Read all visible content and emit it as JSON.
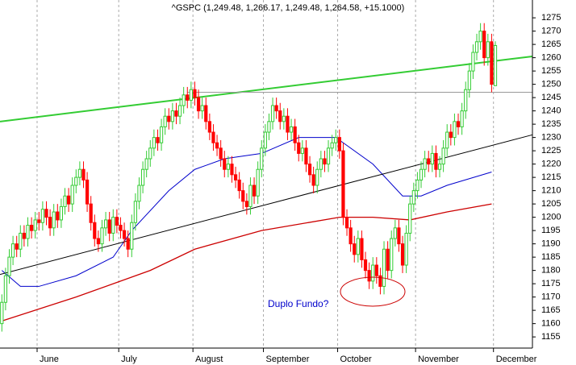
{
  "chart_data": {
    "type": "candlestick",
    "title": "^GSPC (1,249.48, 1,266.17, 1,249.48, 1,264.58, +15.1000)",
    "annotation": "Duplo Fundo?",
    "categories": [
      null,
      null,
      null,
      null,
      null,
      null,
      null,
      null,
      null,
      null,
      "June",
      null,
      null,
      null,
      null,
      null,
      null,
      null,
      null,
      null,
      null,
      null,
      null,
      null,
      null,
      null,
      null,
      null,
      null,
      null,
      null,
      null,
      "July",
      null,
      null,
      null,
      null,
      null,
      null,
      null,
      null,
      null,
      null,
      null,
      null,
      null,
      null,
      null,
      null,
      null,
      null,
      null,
      "August",
      null,
      null,
      null,
      null,
      null,
      null,
      null,
      null,
      null,
      null,
      null,
      null,
      null,
      null,
      null,
      null,
      null,
      null,
      "September",
      null,
      null,
      null,
      null,
      null,
      null,
      null,
      null,
      null,
      null,
      null,
      null,
      null,
      null,
      null,
      null,
      null,
      null,
      null,
      "October",
      null,
      null,
      null,
      null,
      null,
      null,
      null,
      null,
      null,
      null,
      null,
      null,
      null,
      null,
      null,
      null,
      null,
      null,
      null,
      null,
      "November",
      null,
      null,
      null,
      null,
      null,
      null,
      null,
      null,
      null,
      null,
      null,
      null,
      null,
      null,
      null,
      null,
      null,
      null,
      null,
      null,
      "December"
    ],
    "series": [
      {
        "up_color": "#33cc33",
        "down_color": "#ff0000",
        "open": [
          1160,
          1168,
          1178,
          1185,
          1190,
          1188,
          1194,
          1192,
          1197,
          1195,
          1199,
          1198,
          1203,
          1200,
          1196,
          1202,
          1199,
          1204,
          1208,
          1205,
          1212,
          1215,
          1218,
          1214,
          1205,
          1198,
          1192,
          1190,
          1196,
          1199,
          1194,
          1200,
          1197,
          1195,
          1192,
          1188,
          1198,
          1206,
          1212,
          1218,
          1222,
          1226,
          1230,
          1228,
          1234,
          1238,
          1236,
          1240,
          1238,
          1242,
          1246,
          1244,
          1248,
          1245,
          1240,
          1242,
          1236,
          1232,
          1228,
          1226,
          1222,
          1218,
          1220,
          1216,
          1214,
          1210,
          1206,
          1204,
          1212,
          1208,
          1218,
          1226,
          1232,
          1236,
          1242,
          1240,
          1236,
          1238,
          1232,
          1234,
          1228,
          1224,
          1226,
          1220,
          1216,
          1212,
          1218,
          1222,
          1220,
          1226,
          1228,
          1230,
          1225,
          1200,
          1196,
          1190,
          1186,
          1192,
          1184,
          1180,
          1176,
          1182,
          1178,
          1174,
          1188,
          1180,
          1192,
          1196,
          1190,
          1182,
          1194,
          1205,
          1210,
          1214,
          1218,
          1222,
          1220,
          1224,
          1218,
          1220,
          1226,
          1232,
          1230,
          1236,
          1234,
          1240,
          1248,
          1255,
          1262,
          1266,
          1270,
          1260,
          1266,
          1249.48
        ],
        "high": [
          1171,
          1181,
          1188,
          1193,
          1193,
          1197,
          1197,
          1200,
          1200,
          1202,
          1202,
          1206,
          1206,
          1203,
          1205,
          1205,
          1207,
          1211,
          1211,
          1215,
          1218,
          1221,
          1221,
          1217,
          1208,
          1201,
          1195,
          1199,
          1202,
          1202,
          1203,
          1203,
          1200,
          1198,
          1195,
          1201,
          1209,
          1215,
          1221,
          1225,
          1229,
          1233,
          1233,
          1237,
          1241,
          1241,
          1243,
          1243,
          1245,
          1249,
          1249,
          1251,
          1251,
          1248,
          1245,
          1245,
          1239,
          1235,
          1231,
          1229,
          1225,
          1223,
          1223,
          1219,
          1217,
          1213,
          1209,
          1215,
          1215,
          1221,
          1229,
          1235,
          1239,
          1245,
          1245,
          1243,
          1241,
          1241,
          1237,
          1237,
          1231,
          1229,
          1229,
          1223,
          1219,
          1221,
          1225,
          1225,
          1229,
          1231,
          1233,
          1233,
          1228,
          1203,
          1199,
          1193,
          1195,
          1195,
          1187,
          1183,
          1185,
          1185,
          1181,
          1191,
          1191,
          1195,
          1199,
          1199,
          1193,
          1197,
          1208,
          1213,
          1217,
          1221,
          1225,
          1225,
          1227,
          1227,
          1223,
          1229,
          1235,
          1235,
          1239,
          1239,
          1243,
          1251,
          1258,
          1265,
          1269,
          1273,
          1273,
          1269,
          1269,
          1266.17
        ],
        "low": [
          1157,
          1165,
          1175,
          1182,
          1185,
          1185,
          1189,
          1189,
          1192,
          1192,
          1195,
          1195,
          1197,
          1193,
          1193,
          1196,
          1196,
          1201,
          1202,
          1202,
          1209,
          1212,
          1211,
          1202,
          1195,
          1189,
          1187,
          1187,
          1193,
          1191,
          1191,
          1194,
          1192,
          1189,
          1185,
          1185,
          1195,
          1203,
          1209,
          1215,
          1219,
          1223,
          1225,
          1225,
          1231,
          1233,
          1233,
          1235,
          1235,
          1239,
          1241,
          1241,
          1242,
          1237,
          1237,
          1233,
          1229,
          1225,
          1223,
          1219,
          1215,
          1215,
          1213,
          1211,
          1207,
          1203,
          1201,
          1201,
          1205,
          1205,
          1215,
          1223,
          1229,
          1233,
          1237,
          1233,
          1233,
          1229,
          1229,
          1225,
          1221,
          1221,
          1217,
          1213,
          1209,
          1209,
          1215,
          1217,
          1217,
          1223,
          1225,
          1222,
          1197,
          1193,
          1187,
          1183,
          1183,
          1181,
          1177,
          1173,
          1173,
          1175,
          1171,
          1171,
          1177,
          1177,
          1189,
          1187,
          1179,
          1179,
          1191,
          1202,
          1207,
          1211,
          1215,
          1217,
          1217,
          1215,
          1215,
          1217,
          1223,
          1227,
          1227,
          1231,
          1231,
          1237,
          1245,
          1252,
          1259,
          1263,
          1257,
          1257,
          1247,
          1249.48
        ],
        "close": [
          1168,
          1178,
          1185,
          1190,
          1188,
          1194,
          1192,
          1197,
          1195,
          1199,
          1198,
          1203,
          1200,
          1196,
          1202,
          1199,
          1204,
          1208,
          1205,
          1212,
          1215,
          1218,
          1214,
          1205,
          1198,
          1192,
          1190,
          1196,
          1199,
          1194,
          1200,
          1197,
          1195,
          1192,
          1188,
          1198,
          1206,
          1212,
          1218,
          1222,
          1226,
          1230,
          1228,
          1234,
          1238,
          1236,
          1240,
          1238,
          1242,
          1246,
          1244,
          1248,
          1245,
          1240,
          1242,
          1236,
          1232,
          1228,
          1226,
          1222,
          1218,
          1220,
          1216,
          1214,
          1210,
          1206,
          1204,
          1212,
          1208,
          1218,
          1226,
          1232,
          1236,
          1242,
          1240,
          1236,
          1238,
          1232,
          1234,
          1228,
          1224,
          1226,
          1220,
          1216,
          1212,
          1218,
          1222,
          1220,
          1226,
          1228,
          1230,
          1225,
          1200,
          1196,
          1190,
          1186,
          1192,
          1184,
          1180,
          1176,
          1182,
          1178,
          1174,
          1188,
          1180,
          1192,
          1196,
          1190,
          1182,
          1194,
          1205,
          1210,
          1214,
          1218,
          1222,
          1220,
          1224,
          1218,
          1220,
          1226,
          1232,
          1230,
          1236,
          1234,
          1240,
          1248,
          1255,
          1262,
          1266,
          1270,
          1260,
          1266,
          1250,
          1264.58
        ]
      }
    ],
    "overlays": [
      {
        "color": "#0000cc",
        "width": 1,
        "x": [
          0,
          5,
          10,
          20,
          30,
          35,
          45,
          52,
          60,
          70,
          80,
          90,
          100,
          108,
          113,
          120,
          132
        ],
        "values": [
          1180,
          1174,
          1174,
          1178,
          1185,
          1195,
          1210,
          1218,
          1222,
          1224,
          1230,
          1230,
          1220,
          1208,
          1208,
          1212,
          1217
        ]
      },
      {
        "color": "#cc0000",
        "width": 1.3,
        "x": [
          0,
          20,
          40,
          52,
          70,
          91,
          100,
          110,
          120,
          132
        ],
        "values": [
          1161,
          1170,
          1180,
          1188,
          1195,
          1200,
          1200,
          1199,
          1202,
          1205
        ]
      },
      {
        "color": "#33cc33",
        "width": 2,
        "x": [
          -0.5,
          143
        ],
        "values": [
          1236,
          1260.5
        ]
      },
      {
        "color": "#000000",
        "width": 1,
        "x": [
          -0.5,
          143
        ],
        "values": [
          1178.5,
          1231
        ]
      },
      {
        "color": "#999999",
        "width": 1,
        "x": [
          50,
          143
        ],
        "values": [
          1247,
          1247
        ]
      }
    ],
    "xlim": [
      -0.5,
      143
    ],
    "ylim": [
      1150.8,
      1281.7
    ],
    "yticks": [
      1155,
      1160,
      1165,
      1170,
      1175,
      1180,
      1185,
      1190,
      1195,
      1200,
      1205,
      1210,
      1215,
      1220,
      1225,
      1230,
      1235,
      1240,
      1245,
      1250,
      1255,
      1260,
      1265,
      1270,
      1275
    ]
  }
}
